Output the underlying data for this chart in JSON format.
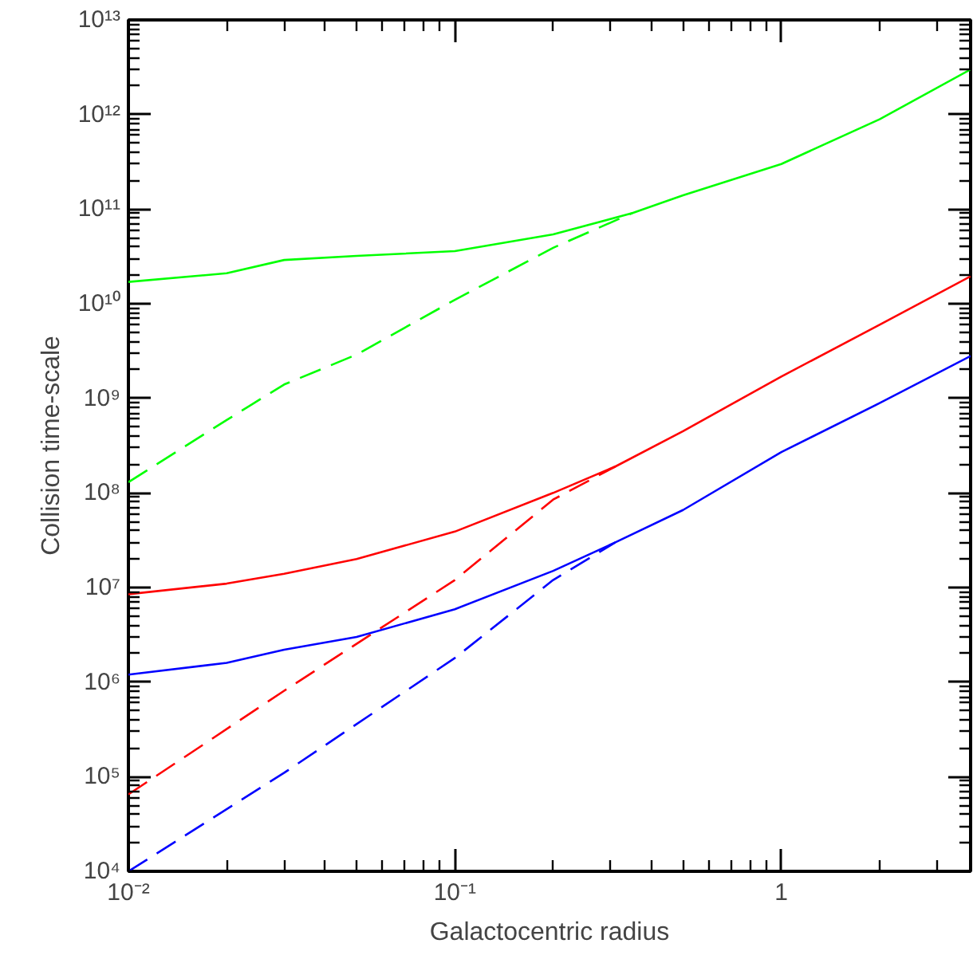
{
  "chart_data": {
    "type": "line",
    "xlabel": "Galactocentric radius",
    "ylabel": "Collision time-scale",
    "log": "xy",
    "xlim": [
      0.01,
      3.8
    ],
    "ylim": [
      10000.0,
      10000000000000.0
    ],
    "xticks": [
      {
        "value": 0.01,
        "label": "10⁻²"
      },
      {
        "value": 0.1,
        "label": "10⁻¹"
      },
      {
        "value": 1,
        "label": "1"
      }
    ],
    "yticks": [
      {
        "value": 10000.0,
        "label": "10⁴"
      },
      {
        "value": 100000.0,
        "label": "10⁵"
      },
      {
        "value": 1000000.0,
        "label": "10⁶"
      },
      {
        "value": 10000000.0,
        "label": "10⁷"
      },
      {
        "value": 100000000.0,
        "label": "10⁸"
      },
      {
        "value": 1000000000.0,
        "label": "10⁹"
      },
      {
        "value": 10000000000.0,
        "label": "10¹⁰"
      },
      {
        "value": 100000000000.0,
        "label": "10¹¹"
      },
      {
        "value": 1000000000000.0,
        "label": "10¹²"
      },
      {
        "value": 10000000000000.0,
        "label": "10¹³"
      }
    ],
    "series": [
      {
        "color": "#00ff00",
        "line_style": "solid",
        "x": [
          0.01,
          0.02,
          0.03,
          0.05,
          0.1,
          0.2,
          0.35,
          0.5,
          1,
          2,
          3.8
        ],
        "values": [
          17000000000.0,
          21000000000.0,
          29000000000.0,
          32000000000.0,
          36000000000.0,
          54000000000.0,
          91000000000.0,
          140000000000.0,
          300000000000.0,
          890000000000.0,
          3000000000000.0
        ]
      },
      {
        "color": "#00ff00",
        "line_style": "dashed",
        "x": [
          0.01,
          0.02,
          0.03,
          0.05,
          0.1,
          0.2,
          0.35
        ],
        "values": [
          130000000.0,
          590000000.0,
          1400000000.0,
          2900000000.0,
          11000000000.0,
          39000000000.0,
          91000000000.0
        ]
      },
      {
        "color": "#ff0000",
        "line_style": "solid",
        "x": [
          0.01,
          0.02,
          0.03,
          0.05,
          0.1,
          0.2,
          0.31,
          0.5,
          1,
          2,
          3.8
        ],
        "values": [
          8500000.0,
          11000000.0,
          14000000.0,
          20000000.0,
          39000000.0,
          100000000.0,
          190000000.0,
          450000000.0,
          1700000000.0,
          6000000000.0,
          19500000000.0
        ]
      },
      {
        "color": "#ff0000",
        "line_style": "dashed",
        "x": [
          0.01,
          0.03,
          0.1,
          0.2,
          0.31
        ],
        "values": [
          65000.0,
          810000.0,
          12000000.0,
          85000000.0,
          190000000.0
        ]
      },
      {
        "color": "#0000ff",
        "line_style": "solid",
        "x": [
          0.01,
          0.02,
          0.03,
          0.05,
          0.1,
          0.2,
          0.31,
          0.5,
          1,
          2,
          3.8
        ],
        "values": [
          1200000.0,
          1600000.0,
          2200000.0,
          3000000.0,
          5900000.0,
          15000000.0,
          30000000.0,
          66000000.0,
          270000000.0,
          890000000.0,
          2800000000.0
        ]
      },
      {
        "color": "#0000ff",
        "line_style": "dashed",
        "x": [
          0.01,
          0.03,
          0.1,
          0.2,
          0.31
        ],
        "values": [
          10000.0,
          110000.0,
          1800000.0,
          12000000.0,
          30000000.0
        ]
      }
    ]
  }
}
